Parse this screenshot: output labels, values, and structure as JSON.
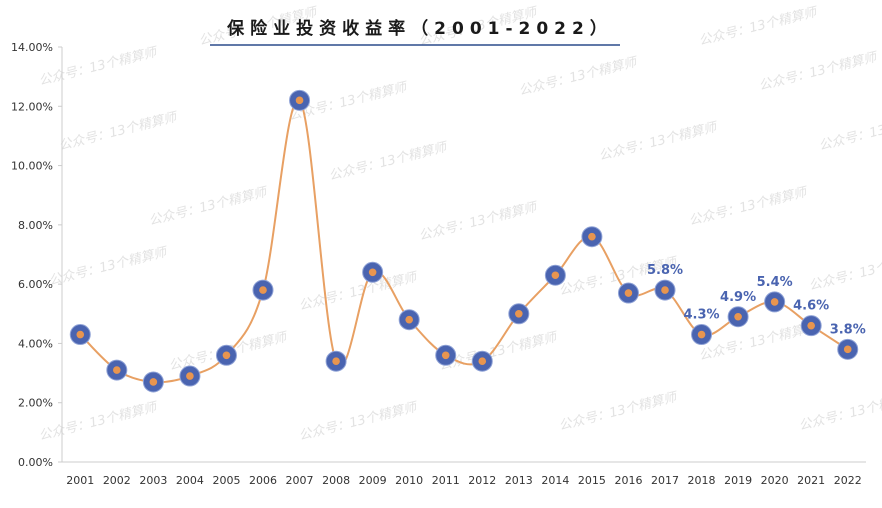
{
  "chart_data": {
    "type": "line",
    "title": "保险业投资收益率（2001-2022）",
    "watermark": "公众号：13个精算师",
    "categories": [
      "2001",
      "2002",
      "2003",
      "2004",
      "2005",
      "2006",
      "2007",
      "2008",
      "2009",
      "2010",
      "2011",
      "2012",
      "2013",
      "2014",
      "2015",
      "2016",
      "2017",
      "2018",
      "2019",
      "2020",
      "2021",
      "2022"
    ],
    "series": [
      {
        "values": [
          4.3,
          3.1,
          2.7,
          2.9,
          3.6,
          5.8,
          12.2,
          3.4,
          6.4,
          4.8,
          3.6,
          3.4,
          5.0,
          6.3,
          7.6,
          5.7,
          5.8,
          4.3,
          4.9,
          5.4,
          4.6,
          3.8
        ]
      }
    ],
    "data_labels": [
      {
        "category": "2017",
        "text": "5.8%"
      },
      {
        "category": "2018",
        "text": "4.3%"
      },
      {
        "category": "2019",
        "text": "4.9%"
      },
      {
        "category": "2020",
        "text": "5.4%"
      },
      {
        "category": "2021",
        "text": "4.6%"
      },
      {
        "category": "2022",
        "text": "3.8%"
      }
    ],
    "y_ticks": [
      "0.00%",
      "2.00%",
      "4.00%",
      "6.00%",
      "8.00%",
      "10.00%",
      "12.00%",
      "14.00%"
    ],
    "ylim": [
      0,
      14
    ],
    "xlabel": "",
    "ylabel": "",
    "grid": false,
    "legend": "none",
    "colors": {
      "line": "#E8A063",
      "marker_outer": "#4A64B0",
      "marker_inner": "#E8954F",
      "label": "#4A64B0",
      "axis": "#cccccc",
      "title_underline": "#2B4C8C"
    }
  }
}
